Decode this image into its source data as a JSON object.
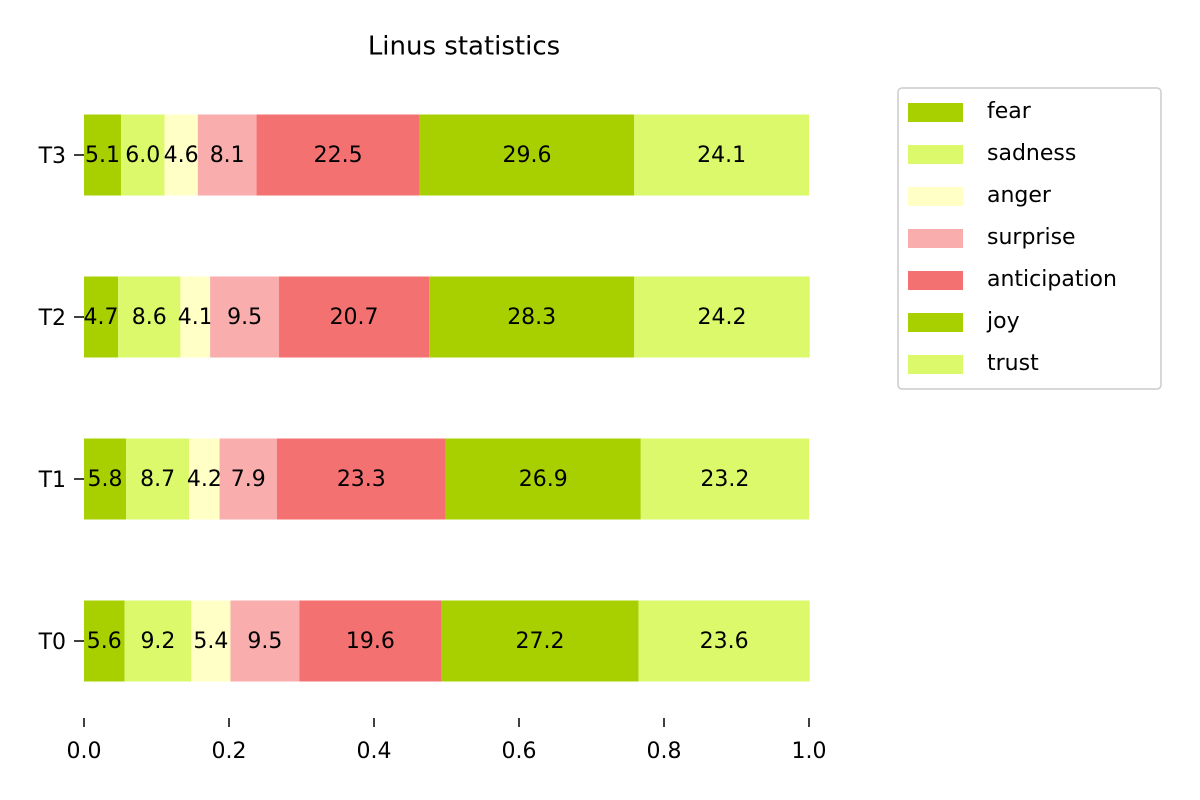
{
  "chart_data": {
    "type": "stacked_barh",
    "title": "Linus statistics",
    "categories": [
      "T0",
      "T1",
      "T2",
      "T3"
    ],
    "series": [
      {
        "name": "fear",
        "color": "#a8d000",
        "values": [
          0.056,
          0.058,
          0.047,
          0.051
        ],
        "value_labels": [
          "5.6",
          "5.8",
          "4.7",
          "5.1"
        ]
      },
      {
        "name": "sadness",
        "color": "#dbf96b",
        "values": [
          0.092,
          0.087,
          0.086,
          0.06
        ],
        "value_labels": [
          "9.2",
          "8.7",
          "8.6",
          "6.0"
        ]
      },
      {
        "name": "anger",
        "color": "#ffffc6",
        "values": [
          0.054,
          0.042,
          0.041,
          0.046
        ],
        "value_labels": [
          "5.4",
          "4.2",
          "4.1",
          "4.6"
        ]
      },
      {
        "name": "surprise",
        "color": "#f9adad",
        "values": [
          0.095,
          0.079,
          0.095,
          0.081
        ],
        "value_labels": [
          "9.5",
          "7.9",
          "9.5",
          "8.1"
        ]
      },
      {
        "name": "anticipation",
        "color": "#f47171",
        "values": [
          0.196,
          0.233,
          0.207,
          0.225
        ],
        "value_labels": [
          "19.6",
          "23.3",
          "20.7",
          "22.5"
        ]
      },
      {
        "name": "joy",
        "color": "#a8d000",
        "values": [
          0.272,
          0.269,
          0.283,
          0.296
        ],
        "value_labels": [
          "27.2",
          "26.9",
          "28.3",
          "29.6"
        ]
      },
      {
        "name": "trust",
        "color": "#dbf96b",
        "values": [
          0.236,
          0.232,
          0.242,
          0.241
        ],
        "value_labels": [
          "23.6",
          "23.2",
          "24.2",
          "24.1"
        ]
      }
    ],
    "xlim": [
      0,
      1
    ],
    "xticks": [
      {
        "value": 0,
        "label": "0.0"
      },
      0.2,
      0.4,
      0.6,
      0.8,
      {
        "value": 1,
        "label": "1.0"
      }
    ],
    "legend": "upper right"
  }
}
